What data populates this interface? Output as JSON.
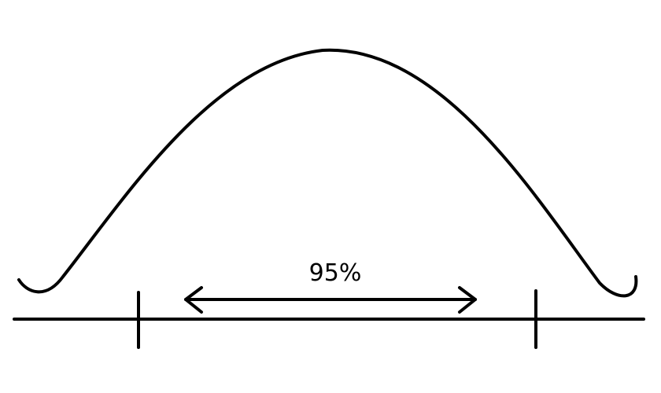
{
  "diagram": {
    "interval_label": "95%",
    "elements": [
      "bell-curve",
      "horizontal-axis",
      "left-boundary-tick",
      "right-boundary-tick",
      "double-headed-arrow"
    ]
  },
  "colors": {
    "stroke": "#000000",
    "background": "#ffffff"
  }
}
